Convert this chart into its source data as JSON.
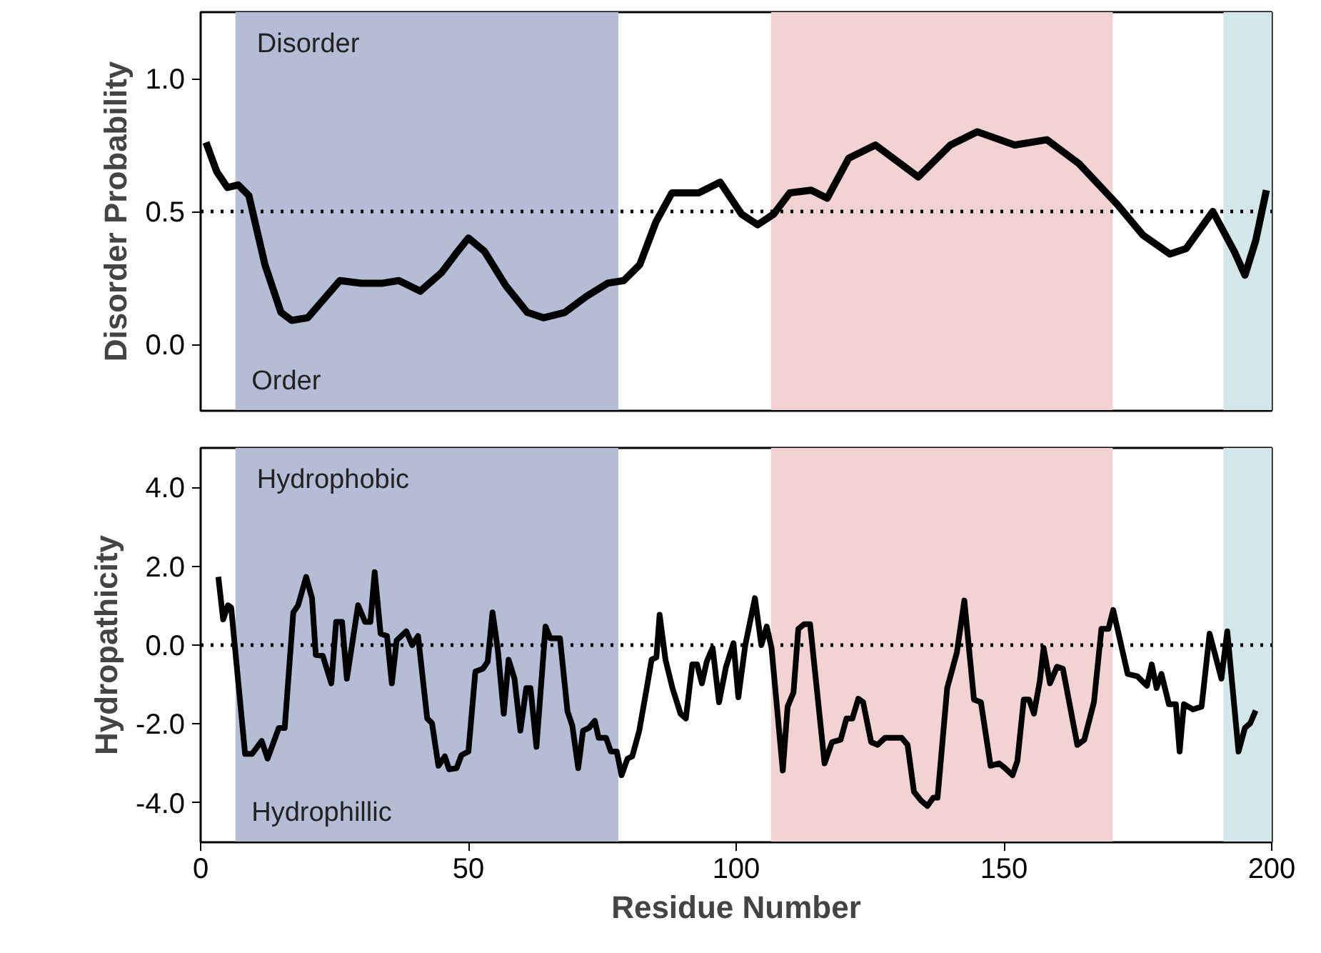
{
  "chart_data": [
    {
      "type": "line",
      "ylabel": "Disorder Probability",
      "xlim": [
        0,
        200
      ],
      "xticks": [
        0,
        50,
        100,
        150,
        200
      ],
      "ylim": [
        -0.25,
        1.25
      ],
      "yticks": [
        {
          "value": 0,
          "label": "0.0"
        },
        {
          "value": 0.5,
          "label": "0.5"
        },
        {
          "value": 1,
          "label": "1.0"
        }
      ],
      "tick_labels": "y",
      "grid": false,
      "line_style": "solid",
      "marker": "none",
      "annotations": [
        "Disorder",
        "Order"
      ],
      "ref_lines": [
        {
          "axis": "y",
          "value": 0.5,
          "line_style": "dotted",
          "color": "#000000"
        }
      ],
      "bands": [
        {
          "axis": "x",
          "from": 6.5,
          "to": 78,
          "color": "#b5bdd6"
        },
        {
          "axis": "x",
          "from": 106.5,
          "to": 170.3,
          "color": "#f2d2d3"
        },
        {
          "axis": "x",
          "from": 191,
          "to": 200,
          "color": "#d3e6e9"
        }
      ],
      "series": [
        {
          "color": "#000000",
          "x": [
            1,
            3,
            5,
            7,
            9,
            12,
            15,
            17,
            20,
            23,
            26,
            30,
            34,
            37,
            41,
            45,
            48,
            50,
            53,
            57,
            61,
            64,
            68,
            72,
            76,
            79,
            82,
            85,
            88,
            93,
            97,
            101,
            104,
            107,
            110,
            114,
            117,
            121,
            126,
            134,
            140,
            145,
            152,
            158,
            164,
            171,
            176,
            181,
            184,
            189,
            193,
            195,
            197,
            199
          ],
          "values": [
            0.76,
            0.65,
            0.59,
            0.6,
            0.56,
            0.3,
            0.12,
            0.09,
            0.1,
            0.17,
            0.24,
            0.23,
            0.23,
            0.24,
            0.2,
            0.27,
            0.35,
            0.4,
            0.35,
            0.22,
            0.12,
            0.1,
            0.12,
            0.18,
            0.23,
            0.24,
            0.3,
            0.46,
            0.57,
            0.57,
            0.61,
            0.49,
            0.45,
            0.49,
            0.57,
            0.58,
            0.55,
            0.7,
            0.75,
            0.63,
            0.75,
            0.8,
            0.75,
            0.77,
            0.68,
            0.53,
            0.41,
            0.34,
            0.36,
            0.5,
            0.35,
            0.26,
            0.39,
            0.58
          ]
        }
      ]
    },
    {
      "type": "line",
      "ylabel": "Hydropathicity",
      "xlabel": "Residue Number",
      "xlim": [
        0,
        200
      ],
      "xticks": [
        0,
        50,
        100,
        150,
        200
      ],
      "ylim": [
        -5,
        5
      ],
      "yticks": [
        {
          "value": -4,
          "label": "-4.0"
        },
        {
          "value": -2,
          "label": "-2.0"
        },
        {
          "value": 0,
          "label": "0.0"
        },
        {
          "value": 2,
          "label": "2.0"
        },
        {
          "value": 4,
          "label": "4.0"
        }
      ],
      "grid": false,
      "line_style": "solid",
      "marker": "none",
      "annotations": [
        "Hydrophobic",
        "Hydrophillic"
      ],
      "ref_lines": [
        {
          "axis": "y",
          "value": 0,
          "line_style": "dotted",
          "color": "#000000"
        }
      ],
      "bands": [
        {
          "axis": "x",
          "from": 6.5,
          "to": 78,
          "color": "#b5bdd6"
        },
        {
          "axis": "x",
          "from": 106.5,
          "to": 170.3,
          "color": "#f2d2d3"
        },
        {
          "axis": "x",
          "from": 191,
          "to": 200,
          "color": "#d3e6e9"
        }
      ],
      "series": [
        {
          "color": "#000000",
          "x": [
            3.3,
            4.2,
            5.1,
            5.7,
            8.3,
            9.6,
            11.4,
            12.5,
            14.6,
            15.7,
            17.3,
            18.2,
            19.7,
            20.8,
            21.5,
            22.8,
            24.4,
            25.3,
            26.4,
            27.3,
            29.4,
            30.7,
            31.7,
            32.5,
            33.6,
            34.8,
            35.7,
            36.6,
            38.4,
            39.5,
            40.6,
            42.3,
            43.2,
            44.4,
            45.6,
            46.4,
            47.8,
            48.7,
            50.0,
            51.3,
            52.7,
            53.6,
            54.5,
            55.5,
            56.6,
            57.5,
            58.6,
            59.7,
            60.8,
            61.6,
            62.7,
            64.4,
            65.3,
            67.1,
            68.5,
            69.4,
            70.5,
            71.4,
            72.5,
            73.6,
            74.3,
            75.7,
            76.6,
            77.7,
            78.6,
            79.7,
            80.6,
            81.9,
            83.3,
            84.2,
            85.1,
            85.7,
            86.8,
            88.1,
            89.6,
            90.6,
            91.8,
            92.7,
            93.6,
            94.5,
            95.6,
            96.8,
            98.1,
            99.5,
            100.4,
            101.7,
            103.5,
            104.7,
            105.7,
            106.6,
            108.7,
            109.6,
            110.7,
            111.6,
            112.7,
            113.8,
            116.5,
            117.9,
            119.5,
            120.6,
            121.7,
            122.8,
            123.7,
            125.2,
            126.4,
            127.8,
            130.9,
            132.0,
            133.2,
            134.5,
            135.7,
            136.8,
            137.6,
            139.4,
            141.2,
            142.6,
            144.4,
            145.7,
            147.5,
            149.1,
            150.2,
            151.6,
            152.5,
            153.7,
            154.7,
            155.6,
            156.7,
            157.4,
            158.6,
            159.9,
            161.0,
            163.7,
            165.0,
            166.8,
            168.2,
            169.5,
            170.4,
            173.1,
            174.9,
            176.7,
            177.6,
            178.5,
            179.4,
            180.8,
            182.1,
            182.8,
            183.6,
            185.3,
            186.9,
            188.4,
            190.6,
            191.7,
            193.8,
            195.0,
            196.0,
            197.0
          ],
          "values": [
            1.73,
            0.65,
            1.01,
            0.95,
            -2.76,
            -2.76,
            -2.43,
            -2.88,
            -2.1,
            -2.1,
            0.83,
            1.01,
            1.73,
            1.19,
            -0.25,
            -0.27,
            -0.97,
            0.59,
            0.59,
            -0.85,
            1.01,
            0.59,
            0.59,
            1.85,
            0.29,
            0.23,
            -0.97,
            0.12,
            0.35,
            0,
            0.23,
            -1.86,
            -1.98,
            -3.06,
            -2.82,
            -3.15,
            -3.12,
            -2.79,
            -2.7,
            -0.67,
            -0.6,
            -0.42,
            0.83,
            -0.13,
            -1.74,
            -0.37,
            -0.85,
            -2.17,
            -1.09,
            -1.09,
            -2.58,
            0.47,
            0.17,
            0.17,
            -1.68,
            -2.04,
            -3.12,
            -2.17,
            -2.1,
            -1.92,
            -2.35,
            -2.35,
            -2.7,
            -2.7,
            -3.3,
            -2.88,
            -2.82,
            -2.17,
            -1.09,
            -0.37,
            -0.31,
            0.77,
            -0.37,
            -1.09,
            -1.74,
            -1.86,
            -0.49,
            -0.49,
            -0.97,
            -0.42,
            -0.07,
            -1.45,
            -0.55,
            0.05,
            -1.32,
            0,
            1.19,
            0,
            0.47,
            -0.07,
            -3.18,
            -1.56,
            -1.2,
            0.41,
            0.53,
            0.53,
            -3.0,
            -2.46,
            -2.4,
            -1.86,
            -1.86,
            -1.36,
            -1.45,
            -2.46,
            -2.53,
            -2.35,
            -2.35,
            -2.53,
            -3.72,
            -3.94,
            -4.08,
            -3.87,
            -3.87,
            -1.09,
            -0.19,
            1.13,
            -1.38,
            -1.45,
            -3.06,
            -3.0,
            -3.12,
            -3.3,
            -2.94,
            -1.38,
            -1.38,
            -1.74,
            -0.91,
            -0.07,
            -0.97,
            -0.55,
            -0.6,
            -2.53,
            -2.4,
            -1.45,
            0.41,
            0.41,
            0.89,
            -0.73,
            -0.79,
            -1.03,
            -0.49,
            -1.09,
            -0.73,
            -1.5,
            -1.5,
            -2.7,
            -1.5,
            -1.63,
            -1.56,
            0.29,
            -0.85,
            0.35,
            -2.7,
            -2.1,
            -1.98,
            -1.66
          ]
        }
      ]
    }
  ]
}
